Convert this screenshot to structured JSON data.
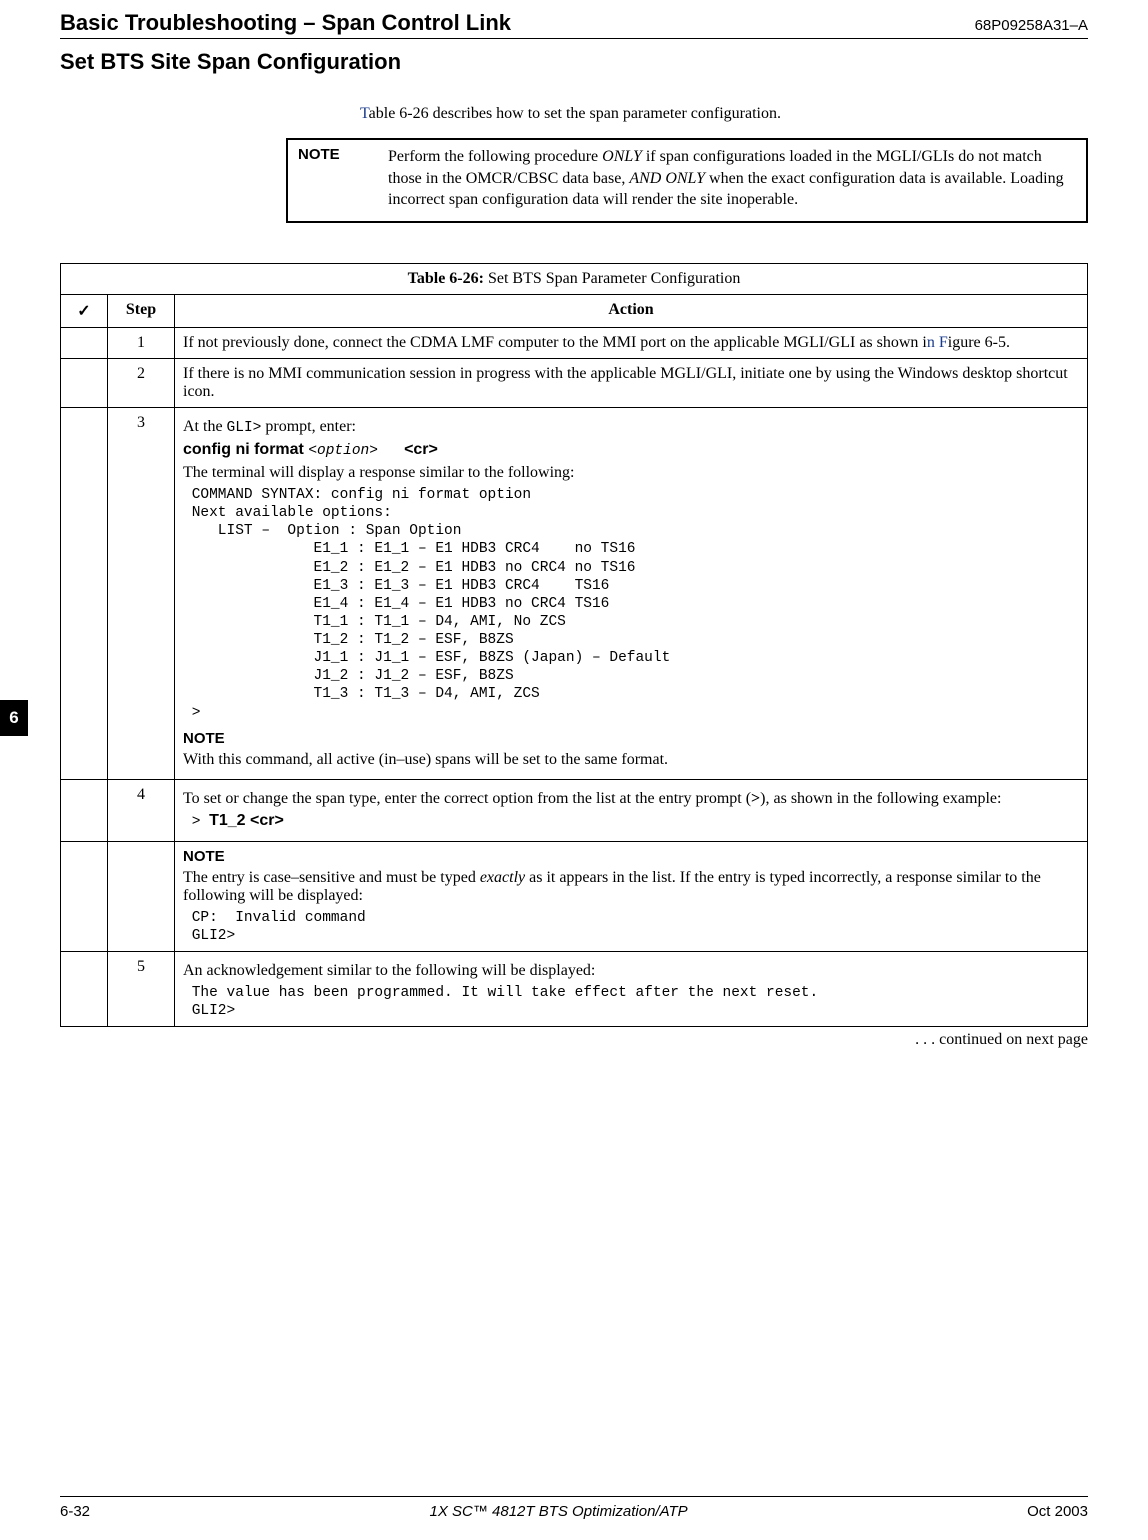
{
  "header": {
    "title": "Basic Troubleshooting – Span Control Link",
    "docnum": "68P09258A31–A"
  },
  "section_title": "Set BTS Site Span Configuration",
  "intro_prefix": "T",
  "intro_text": "able 6-26 describes how to set the span parameter configuration.",
  "note": {
    "label": "NOTE",
    "line1": "Perform the following procedure ",
    "only1": "ONLY",
    "line2": " if span configurations loaded in the MGLI/GLIs do not match those in the OMCR/CBSC data base, ",
    "only2": "AND ONLY",
    "line3": " when the exact configuration data is available. Loading incorrect span configuration data will render the site inoperable."
  },
  "side_tab": "6",
  "table": {
    "caption_bold": "Table 6-26:",
    "caption_rest": " Set BTS Span Parameter Configuration",
    "check_hdr": "✓",
    "step_hdr": "Step",
    "action_hdr": "Action",
    "rows": [
      {
        "step": "1",
        "p1a": "If not previously done, connect the CDMA LMF computer to the MMI port on the applicable MGLI/GLI as shown i",
        "link": "n F",
        "p1b": "igure 6-5."
      },
      {
        "step": "2",
        "p1": "If there is no MMI communication session in progress with the applicable MGLI/GLI, initiate one by using the Windows desktop shortcut icon."
      },
      {
        "step": "3",
        "p1a": "At the ",
        "mono1": "GLI>",
        "p1b": "  prompt, enter:",
        "cmd_bold": "config  ni  format  ",
        "cmd_mono_i": "<option>",
        "cmd_spacer": "   ",
        "cmd_cr": "<cr>",
        "p2": "The terminal will display a response similar to the following:",
        "block": " COMMAND SYNTAX: config ni format option\n Next available options:\n    LIST –  Option : Span Option\n               E1_1 : E1_1 – E1 HDB3 CRC4    no TS16\n               E1_2 : E1_2 – E1 HDB3 no CRC4 no TS16\n               E1_3 : E1_3 – E1 HDB3 CRC4    TS16\n               E1_4 : E1_4 – E1 HDB3 no CRC4 TS16\n               T1_1 : T1_1 – D4, AMI, No ZCS\n               T1_2 : T1_2 – ESF, B8ZS\n               J1_1 : J1_1 – ESF, B8ZS (Japan) – Default\n               J1_2 : J1_2 – ESF, B8ZS\n               T1_3 : T1_3 – D4, AMI, ZCS\n >",
        "note_label": "NOTE",
        "note_text": "With this command, all active (in–use) spans will be set to the same format."
      },
      {
        "step": "4",
        "p1a": "To set or change the span type, enter the correct option from the list at the entry prompt (",
        "pbold": ">",
        "p1b": "), as shown in the following example:",
        "prompt": " > ",
        "ex": "T1_2 <cr>"
      },
      {
        "step": "",
        "note_label": "NOTE",
        "p1a": "The entry is case–sensitive and must be typed ",
        "ital": "exactly",
        "p1b": " as it appears in the list. If the entry is typed incorrectly, a response similar to the following will be displayed:",
        "block": " CP:  Invalid command\n GLI2>"
      },
      {
        "step": "5",
        "p1": "An acknowledgement similar to the following will be displayed:",
        "block": " The value has been programmed. It will take effect after the next reset.\n GLI2>"
      }
    ]
  },
  "continued": ". . . continued on next page",
  "footer": {
    "left": "6-32",
    "center": "1X SC™ 4812T BTS Optimization/ATP",
    "right": "Oct 2003"
  }
}
